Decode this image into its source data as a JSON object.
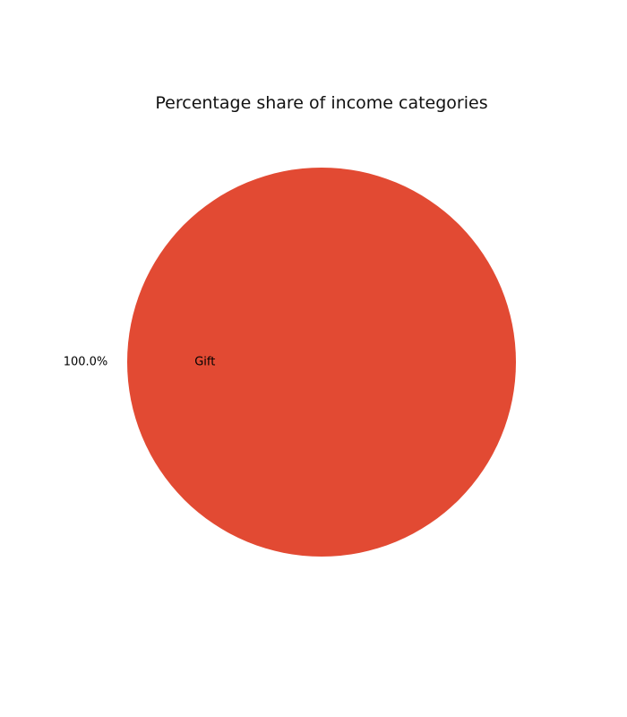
{
  "chart_data": {
    "type": "pie",
    "title": "Percentage share of income categories",
    "slices": [
      {
        "label": "Gift",
        "value": 100.0,
        "pct_label": "100.0%",
        "color": "#E24A33"
      }
    ]
  }
}
